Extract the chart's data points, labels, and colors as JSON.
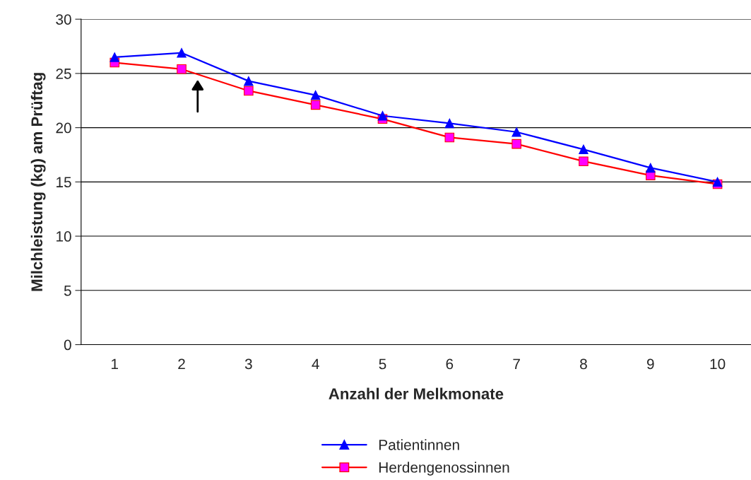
{
  "chart_data": {
    "type": "line",
    "xlabel": "Anzahl der Melkmonate",
    "ylabel": "Milchleistung (kg) am Prüftag",
    "categories": [
      "1",
      "2",
      "3",
      "4",
      "5",
      "6",
      "7",
      "8",
      "9",
      "10"
    ],
    "series": [
      {
        "name": "Patientinnen",
        "color": "#0000ff",
        "marker": "triangle",
        "values": [
          26.5,
          26.9,
          24.3,
          23.0,
          21.1,
          20.4,
          19.6,
          18.0,
          16.3,
          15.0
        ]
      },
      {
        "name": "Herdengenossinnen",
        "color": "#ff0000",
        "marker": "square",
        "values": [
          26.0,
          25.4,
          23.4,
          22.1,
          20.8,
          19.1,
          18.5,
          16.9,
          15.6,
          14.8
        ]
      }
    ],
    "ylim": [
      0,
      30
    ],
    "yticks": [
      0,
      5,
      10,
      15,
      20,
      25,
      30
    ],
    "grid": "y",
    "legend": "bottom",
    "line_style": "solid"
  }
}
